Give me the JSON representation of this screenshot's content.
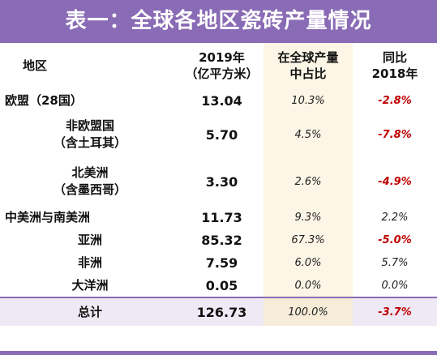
{
  "title": "表一：全球各地区瓷砖产量情况",
  "header": {
    "region": "地区",
    "production_l1": "2019年",
    "production_l2": "（亿平方米）",
    "share_l1": "在全球产量",
    "share_l2": "中占比",
    "yoy_l1": "同比",
    "yoy_l2": "2018年"
  },
  "rows": [
    {
      "region_l1": "欧盟（28国）",
      "region_l2": "",
      "production": "13.04",
      "share": "10.3%",
      "yoy": "-2.8%"
    },
    {
      "region_l1": "非欧盟国",
      "region_l2": "（含土耳其）",
      "production": "5.70",
      "share": "4.5%",
      "yoy": "-7.8%"
    },
    {
      "region_l1": "北美洲",
      "region_l2": "（含墨西哥）",
      "production": "3.30",
      "share": "2.6%",
      "yoy": "-4.9%"
    },
    {
      "region_l1": "中美洲与南美洲",
      "region_l2": "",
      "production": "11.73",
      "share": "9.3%",
      "yoy": "2.2%"
    },
    {
      "region_l1": "亚洲",
      "region_l2": "",
      "production": "85.32",
      "share": "67.3%",
      "yoy": "-5.0%"
    },
    {
      "region_l1": "非洲",
      "region_l2": "",
      "production": "7.59",
      "share": "6.0%",
      "yoy": "5.7%"
    },
    {
      "region_l1": "大洋洲",
      "region_l2": "",
      "production": "0.05",
      "share": "0.0%",
      "yoy": "0.0%"
    },
    {
      "region_l1": "总计",
      "region_l2": "",
      "production": "126.73",
      "share": "100.0%",
      "yoy": "-3.7%"
    }
  ],
  "colors": {
    "accent": "#8a6bb5",
    "negative": "#c00000",
    "share_bg": "#fdf5e6"
  }
}
